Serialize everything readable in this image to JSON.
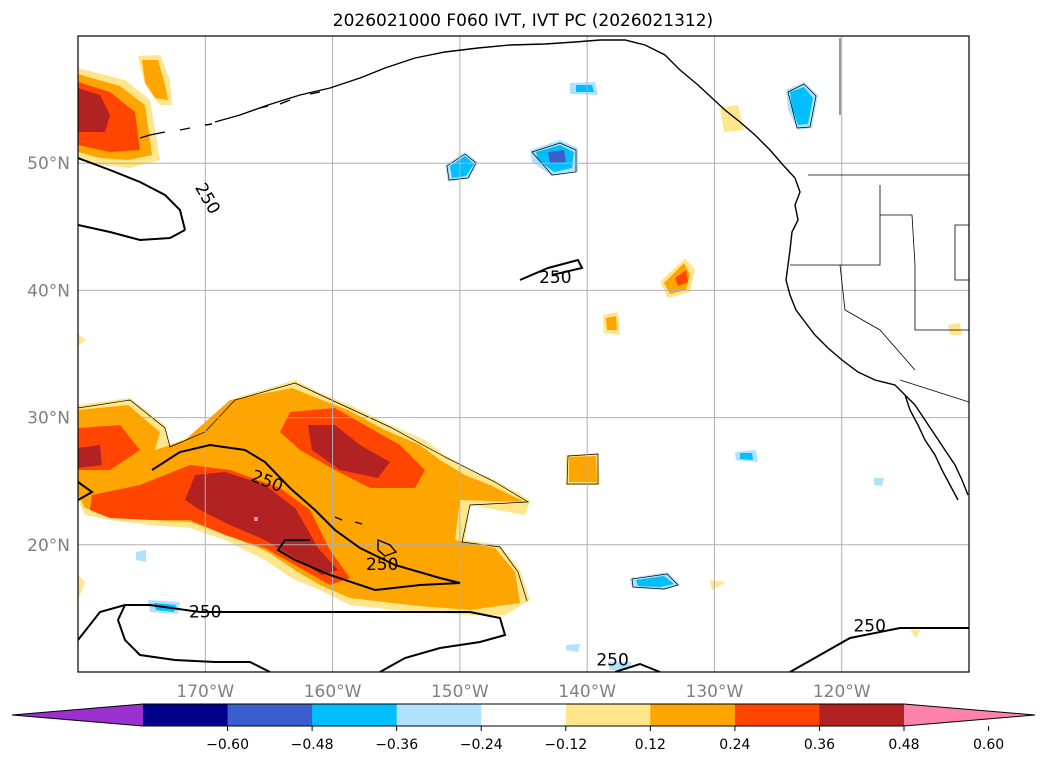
{
  "title": "2026021000 F060 IVT, IVT PC (2026021312)",
  "map": {
    "lon_range": [
      -180,
      -110
    ],
    "lat_range": [
      10,
      60
    ],
    "grid": true,
    "lat_labels": [
      "20°N",
      "30°N",
      "40°N",
      "50°N"
    ],
    "lon_labels": [
      "170°W",
      "160°W",
      "150°W",
      "140°W",
      "130°W",
      "120°W"
    ],
    "contour_level": "250",
    "contour_labels": [
      {
        "text": "250",
        "lon": -170.2,
        "lat": 47.0,
        "rot": 60
      },
      {
        "text": "250",
        "lon": -142.5,
        "lat": 40.6,
        "rot": 0
      },
      {
        "text": "250",
        "lon": -165.3,
        "lat": 24.6,
        "rot": 22
      },
      {
        "text": "250",
        "lon": -156.1,
        "lat": 18.0,
        "rot": 0
      },
      {
        "text": "250",
        "lon": -170.0,
        "lat": 14.3,
        "rot": 0
      },
      {
        "text": "250",
        "lon": -138.0,
        "lat": 10.5,
        "rot": 0
      },
      {
        "text": "250",
        "lon": -117.8,
        "lat": 13.2,
        "rot": 0
      }
    ]
  },
  "colorbar": {
    "ticks": [
      "−0.60",
      "−0.48",
      "−0.36",
      "−0.24",
      "−0.12",
      "0.12",
      "0.24",
      "0.36",
      "0.48",
      "0.60"
    ],
    "colors": [
      "#9b30d0",
      "#00008b",
      "#3a5fcd",
      "#00bfff",
      "#b0e2ff",
      "#ffffff",
      "#ffe68c",
      "#ffa500",
      "#ff4500",
      "#b22222",
      "#ff82ab"
    ],
    "extend": "both"
  },
  "colors": {
    "grid": "#b0b0b0",
    "coast": "#000000"
  }
}
